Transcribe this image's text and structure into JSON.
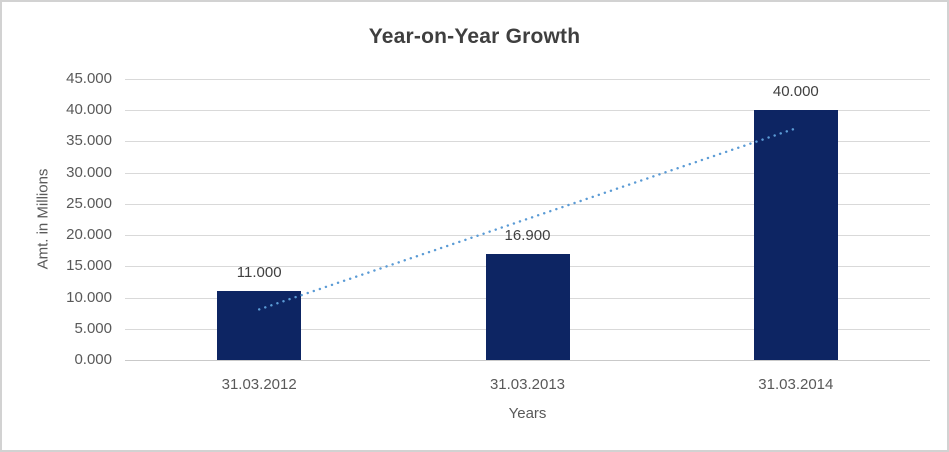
{
  "chart_data": {
    "type": "bar",
    "title": "Year-on-Year Growth",
    "xlabel": "Years",
    "ylabel": "Amt. in Millions",
    "categories": [
      "31.03.2012",
      "31.03.2013",
      "31.03.2014"
    ],
    "series": [
      {
        "name": "Amt. in Millions",
        "values": [
          11.0,
          16.9,
          40.0
        ],
        "data_labels": [
          "11.000",
          "16.900",
          "40.000"
        ]
      }
    ],
    "ylim": [
      0,
      45
    ],
    "ytick_values": [
      0,
      5,
      10,
      15,
      20,
      25,
      30,
      35,
      40,
      45
    ],
    "ytick_labels": [
      "0.000",
      "5.000",
      "10.000",
      "15.000",
      "20.000",
      "25.000",
      "30.000",
      "35.000",
      "40.000",
      "45.000"
    ],
    "grid": true,
    "legend": "none",
    "trendline": {
      "type": "linear",
      "style": "round-dot",
      "start_value": 8.1,
      "end_value": 37.1,
      "from_category": "31.03.2012",
      "to_category": "31.03.2014"
    }
  },
  "colors": {
    "bar": "#0d2563",
    "trendline": "#5b9bd5",
    "gridline": "#d9d9d9",
    "axis_line": "#c9c9c9",
    "title_text": "#3f3f3f",
    "tick_text": "#595959",
    "data_label_text": "#404040",
    "frame_border": "#d2d2d2",
    "background": "#ffffff"
  }
}
